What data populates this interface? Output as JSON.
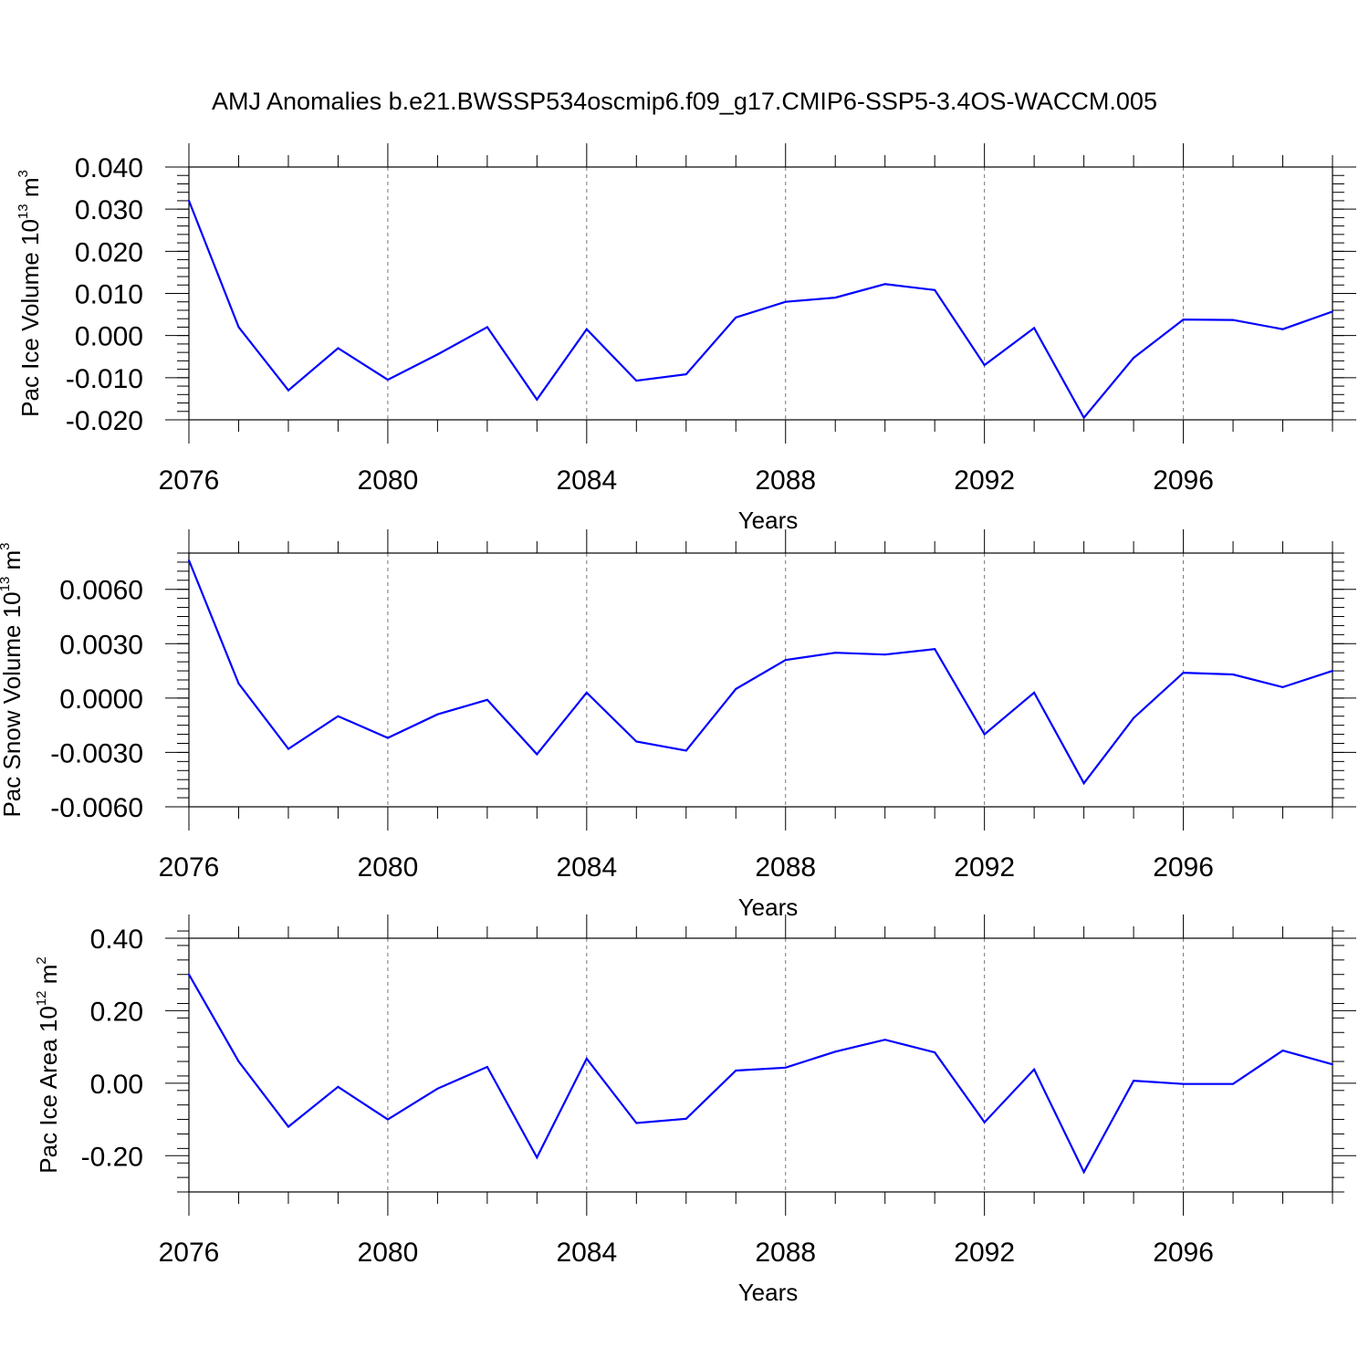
{
  "title": "AMJ Anomalies b.e21.BWSSP534oscmip6.f09_g17.CMIP6-SSP5-3.4OS-WACCM.005",
  "colors": {
    "line": "#0000ff",
    "axis": "#000000",
    "grid": "#777777"
  },
  "chart_data": [
    {
      "type": "line",
      "name": "pac-ice-volume",
      "ylabel": "Pac Ice Volume 10",
      "ylabel_sup1": "13",
      "ylabel_mid": " m",
      "ylabel_sup2": "3",
      "xlabel": "Years",
      "xlim": [
        2076,
        2099
      ],
      "ylim": [
        -0.02,
        0.04
      ],
      "xticks": [
        2076,
        2080,
        2084,
        2088,
        2092,
        2096
      ],
      "xtick_labels": [
        "2076",
        "2080",
        "2084",
        "2088",
        "2092",
        "2096"
      ],
      "yticks": [
        -0.02,
        -0.01,
        0.0,
        0.01,
        0.02,
        0.03,
        0.04
      ],
      "ytick_labels": [
        "-0.020",
        "-0.010",
        "0.000",
        "0.010",
        "0.020",
        "0.030",
        "0.040"
      ],
      "ytick_minor": 0.002,
      "grid": "vertical-dashed",
      "x": [
        2076,
        2077,
        2078,
        2079,
        2080,
        2081,
        2082,
        2083,
        2084,
        2085,
        2086,
        2087,
        2088,
        2089,
        2090,
        2091,
        2092,
        2093,
        2094,
        2095,
        2096,
        2097,
        2098,
        2099
      ],
      "values": [
        0.032,
        0.002,
        -0.013,
        -0.003,
        -0.0105,
        -0.0045,
        0.002,
        -0.0152,
        0.0015,
        -0.0107,
        -0.0092,
        0.0043,
        0.008,
        0.009,
        0.0122,
        0.0108,
        -0.007,
        0.0018,
        -0.0195,
        -0.0053,
        0.0038,
        0.0037,
        0.0015,
        0.0057
      ]
    },
    {
      "type": "line",
      "name": "pac-snow-volume",
      "ylabel": "Pac Snow Volume 10",
      "ylabel_sup1": "13",
      "ylabel_mid": " m",
      "ylabel_sup2": "3",
      "xlabel": "Years",
      "xlim": [
        2076,
        2099
      ],
      "ylim": [
        -0.006,
        0.008
      ],
      "xticks": [
        2076,
        2080,
        2084,
        2088,
        2092,
        2096
      ],
      "xtick_labels": [
        "2076",
        "2080",
        "2084",
        "2088",
        "2092",
        "2096"
      ],
      "yticks": [
        -0.006,
        -0.003,
        0.0,
        0.003,
        0.006
      ],
      "ytick_labels": [
        "-0.0060",
        "-0.0030",
        "0.0000",
        "0.0030",
        "0.0060"
      ],
      "ytick_minor": 0.0005,
      "grid": "vertical-dashed",
      "x": [
        2076,
        2077,
        2078,
        2079,
        2080,
        2081,
        2082,
        2083,
        2084,
        2085,
        2086,
        2087,
        2088,
        2089,
        2090,
        2091,
        2092,
        2093,
        2094,
        2095,
        2096,
        2097,
        2098,
        2099
      ],
      "values": [
        0.0076,
        0.0008,
        -0.0028,
        -0.001,
        -0.0022,
        -0.0009,
        -0.0001,
        -0.0031,
        0.0003,
        -0.0024,
        -0.0029,
        0.0005,
        0.0021,
        0.0025,
        0.0024,
        0.0027,
        -0.002,
        0.0003,
        -0.0047,
        -0.0011,
        0.0014,
        0.0013,
        0.0006,
        0.0015
      ]
    },
    {
      "type": "line",
      "name": "pac-ice-area",
      "ylabel": "Pac Ice Area 10",
      "ylabel_sup1": "12",
      "ylabel_mid": " m",
      "ylabel_sup2": "2",
      "xlabel": "Years",
      "xlim": [
        2076,
        2099
      ],
      "ylim": [
        -0.3,
        0.4
      ],
      "xticks": [
        2076,
        2080,
        2084,
        2088,
        2092,
        2096
      ],
      "xtick_labels": [
        "2076",
        "2080",
        "2084",
        "2088",
        "2092",
        "2096"
      ],
      "yticks": [
        -0.2,
        0.0,
        0.2,
        0.4
      ],
      "ytick_labels": [
        "-0.20",
        "0.00",
        "0.20",
        "0.40"
      ],
      "ytick_minor": 0.04,
      "grid": "vertical-dashed",
      "x": [
        2076,
        2077,
        2078,
        2079,
        2080,
        2081,
        2082,
        2083,
        2084,
        2085,
        2086,
        2087,
        2088,
        2089,
        2090,
        2091,
        2092,
        2093,
        2094,
        2095,
        2096,
        2097,
        2098,
        2099
      ],
      "values": [
        0.3,
        0.06,
        -0.12,
        -0.01,
        -0.1,
        -0.015,
        0.045,
        -0.205,
        0.068,
        -0.11,
        -0.098,
        0.035,
        0.043,
        0.087,
        0.12,
        0.085,
        -0.108,
        0.038,
        -0.245,
        0.007,
        -0.002,
        -0.002,
        0.09,
        0.052
      ]
    }
  ]
}
